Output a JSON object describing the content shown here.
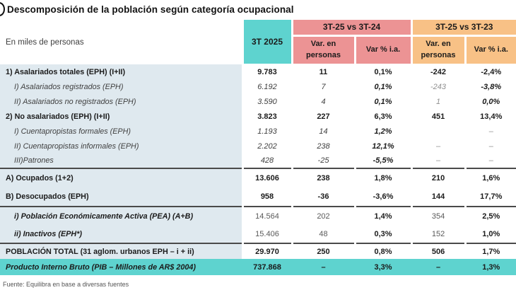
{
  "colors": {
    "teal": "#5ED3CF",
    "pink": "#EC9394",
    "orange": "#F8C186",
    "label_bg": "#DFE9EF"
  },
  "chart_data": {
    "type": "table",
    "title": "Descomposición de la población según categoría ocupacional",
    "unit_label": "En miles de personas",
    "source": "Fuente: Equilibra en base a diversas fuentes",
    "column_groups": [
      {
        "label": "3T 2025",
        "color": "#5ED3CF"
      },
      {
        "label": "3T-25 vs 3T-24",
        "color": "#EC9394",
        "subcolumns": [
          "Var. en personas",
          "Var % i.a."
        ]
      },
      {
        "label": "3T-25 vs 3T-23",
        "color": "#F8C186",
        "subcolumns": [
          "Var. en personas",
          "Var % i.a."
        ]
      }
    ],
    "rows": [
      {
        "label": "1) Asalariados totales (EPH) (I+II)",
        "indent": false,
        "label_style": "bold",
        "values": [
          "9.783",
          "11",
          "0,1%",
          "-242",
          "-2,4%"
        ],
        "value_styles": [
          "b",
          "b",
          "b",
          "b",
          "b"
        ]
      },
      {
        "label": "I) Asalariados registrados (EPH)",
        "indent": true,
        "label_style": "italic",
        "values": [
          "6.192",
          "7",
          "0,1%",
          "-243",
          "-3,8%"
        ],
        "value_styles": [
          "i",
          "i",
          "bi",
          "mi",
          "bi"
        ]
      },
      {
        "label": "II) Asalariados no registrados (EPH)",
        "indent": true,
        "label_style": "italic",
        "values": [
          "3.590",
          "4",
          "0,1%",
          "1",
          "0,0%"
        ],
        "value_styles": [
          "i",
          "i",
          "bi",
          "mi",
          "bi"
        ]
      },
      {
        "label": "2) No asalariados (EPH) (I+II)",
        "indent": false,
        "label_style": "bold",
        "values": [
          "3.823",
          "227",
          "6,3%",
          "451",
          "13,4%"
        ],
        "value_styles": [
          "b",
          "b",
          "b",
          "b",
          "b"
        ]
      },
      {
        "label": "I) Cuentapropistas formales (EPH)",
        "indent": true,
        "label_style": "italic",
        "values": [
          "1.193",
          "14",
          "1,2%",
          "",
          "–"
        ],
        "value_styles": [
          "i",
          "i",
          "bi",
          "m",
          "m"
        ]
      },
      {
        "label": "II) Cuentapropistas informales (EPH)",
        "indent": true,
        "label_style": "italic",
        "values": [
          "2.202",
          "238",
          "12,1%",
          "–",
          "–"
        ],
        "value_styles": [
          "i",
          "i",
          "bi",
          "m",
          "m"
        ]
      },
      {
        "label": "III)Patrones",
        "indent": true,
        "label_style": "italic",
        "values": [
          "428",
          "-25",
          "-5,5%",
          "–",
          "–"
        ],
        "value_styles": [
          "i",
          "i",
          "bi",
          "m",
          "m"
        ]
      },
      {
        "label": "A) Ocupados (1+2)",
        "indent": false,
        "label_style": "bold",
        "values": [
          "13.606",
          "238",
          "1,8%",
          "210",
          "1,6%"
        ],
        "value_styles": [
          "b",
          "b",
          "b",
          "b",
          "b"
        ]
      },
      {
        "label": "B) Desocupados (EPH)",
        "indent": false,
        "label_style": "bold",
        "values": [
          "958",
          "-36",
          "-3,6%",
          "144",
          "17,7%"
        ],
        "value_styles": [
          "b",
          "b",
          "b",
          "b",
          "b"
        ]
      },
      {
        "label": "i) Población Económicamente Activa (PEA) (A+B)",
        "indent": true,
        "label_style": "bold-italic",
        "values": [
          "14.564",
          "202",
          "1,4%",
          "354",
          "2,5%"
        ],
        "value_styles": [
          "r",
          "r",
          "b",
          "r",
          "b"
        ]
      },
      {
        "label": "ii) Inactivos (EPH*)",
        "indent": true,
        "label_style": "bold-italic",
        "values": [
          "15.406",
          "48",
          "0,3%",
          "152",
          "1,0%"
        ],
        "value_styles": [
          "r",
          "r",
          "b",
          "r",
          "b"
        ]
      },
      {
        "label": "POBLACIÓN TOTAL (31 aglom. urbanos EPH – i + ii)",
        "indent": false,
        "label_style": "bold",
        "values": [
          "29.970",
          "250",
          "0,8%",
          "506",
          "1,7%"
        ],
        "value_styles": [
          "b",
          "b",
          "b",
          "b",
          "b"
        ]
      },
      {
        "label": "Producto Interno Bruto (PIB – Millones de AR$ 2004)",
        "indent": false,
        "label_style": "bold-italic",
        "highlight": true,
        "values": [
          "737.868",
          "–",
          "3,3%",
          "–",
          "1,3%"
        ],
        "value_styles": [
          "b",
          "b",
          "b",
          "b",
          "b"
        ]
      }
    ]
  }
}
